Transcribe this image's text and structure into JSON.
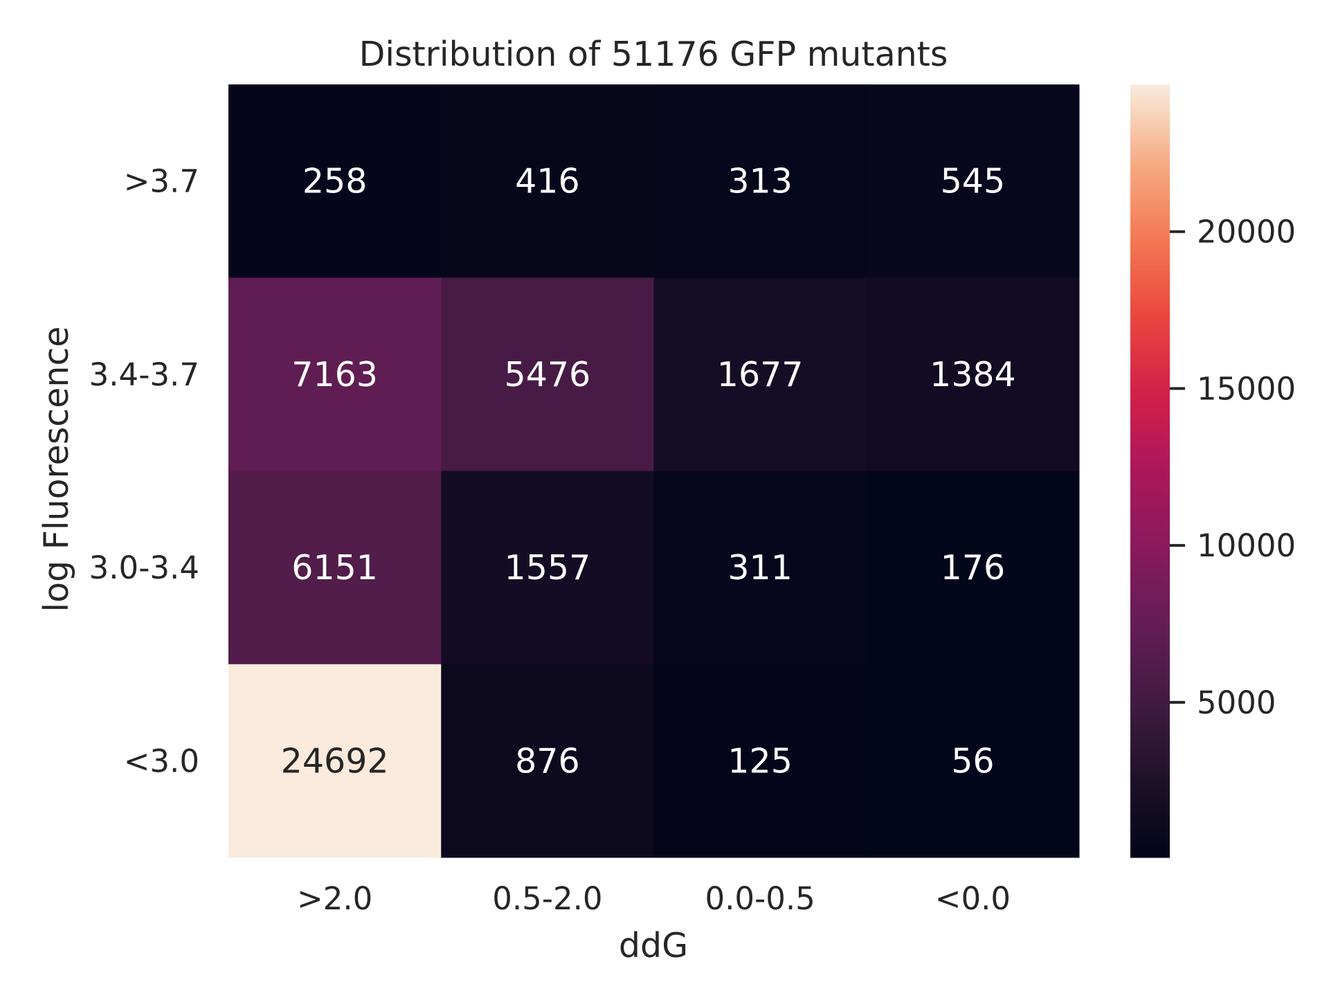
{
  "chart_data": {
    "type": "heatmap",
    "title": "Distribution of 51176 GFP mutants",
    "xlabel": "ddG",
    "ylabel": "log Fluorescence",
    "x_categories": [
      ">2.0",
      "0.5-2.0",
      "0.0-0.5",
      "<0.0"
    ],
    "y_categories": [
      ">3.7",
      "3.4-3.7",
      "3.0-3.4",
      "<3.0"
    ],
    "values": [
      [
        258,
        416,
        313,
        545
      ],
      [
        7163,
        5476,
        1677,
        1384
      ],
      [
        6151,
        1557,
        311,
        176
      ],
      [
        24692,
        876,
        125,
        56
      ]
    ],
    "colorbar": {
      "min": 56,
      "max": 24692,
      "ticks": [
        5000,
        10000,
        15000,
        20000
      ],
      "tick_labels": [
        "5000",
        "10000",
        "15000",
        "20000"
      ],
      "colormap": "rocket"
    },
    "annotation_colors": {
      "light": "#ffffff",
      "dark": "#262626"
    }
  }
}
